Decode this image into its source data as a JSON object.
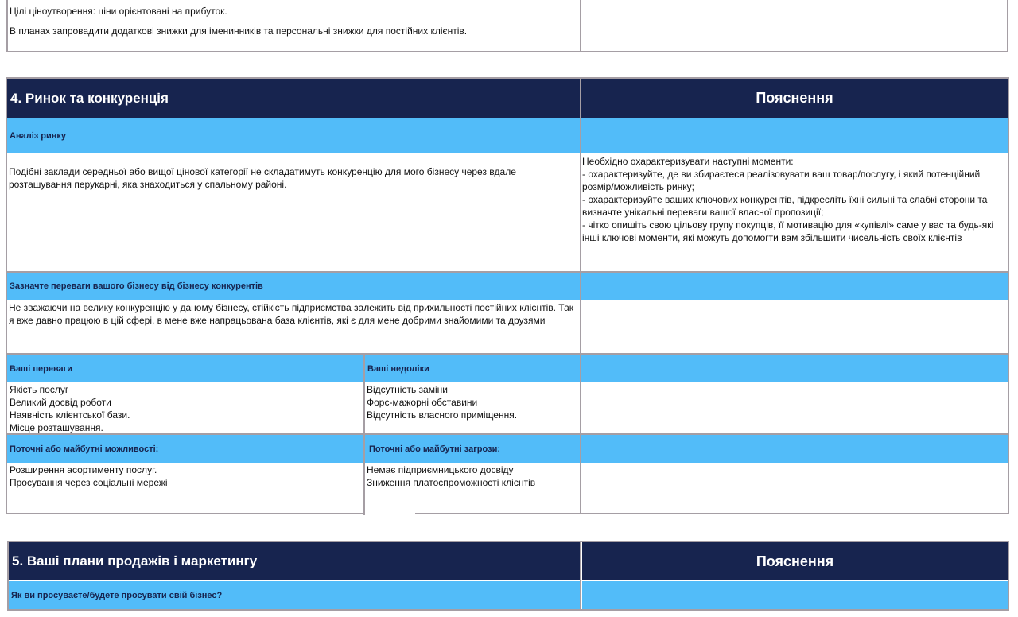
{
  "top": {
    "lines": [
      "Цілі ціноутворення: ціни орієнтовані на прибуток.",
      "В планах запровадити додаткові знижки для іменинників та персональні знижки для постійних клієнтів."
    ]
  },
  "s4": {
    "title": "4. Ринок та конкуренція",
    "explain": "Пояснення",
    "market_label": "Аналіз ринку",
    "market_text": "Подібні заклади середньої або вищої цінової категорії не складатимуть конкуренцію для мого бізнесу через вдале розташування перукарні, яка знаходиться у спальному районі.",
    "hint": [
      "Необхідно охарактеризувати наступні моменти:",
      "- охарактеризуйте, де ви збираєтеся реалізовувати ваш товар/послугу, і який потенційний розмір/можливість ринку;",
      "- охарактеризуйте  ваших ключових конкурентів, підкресліть їхні сильні та слабкі сторони та визначте унікальні переваги вашої власної пропозиції;",
      "- чітко опишіть свою цільову групу покупців, її мотивацію для «купівлі» саме у вас та будь-які інші ключові моменти, які можуть допомогти вам збільшити чисельність своїх клієнтів"
    ],
    "adv_label": "Зазначте переваги вашого бізнесу від бізнесу конкурентів",
    "adv_text": "Не зважаючи на велику конкуренцію у даному бізнесу, стійкість підприємства залежить від прихильності постійних клієнтів. Так я вже давно працюю в цій сфері, в мене вже напрацьована база клієнтів, які є для мене добрими знайомими та друзями",
    "strengths_label": "Ваші переваги",
    "strengths": [
      "Якість послуг",
      "Великий досвід роботи",
      "Наявність клієнтської бази.",
      "Місце розташування."
    ],
    "weaknesses_label": "Ваші недоліки",
    "weaknesses": [
      "Відсутність заміни",
      "Форс-мажорні обставини",
      "Відсутність власного приміщення."
    ],
    "opps_label": "Поточні або майбутні можливості:",
    "opps": [
      "Розширення асортименту послуг.",
      "Просування через соціальні мережі"
    ],
    "threats_label": "Поточні або майбутні загрози:",
    "threats": [
      "Немає підприємницького досвіду",
      "Зниження платоспроможності клієнтів"
    ]
  },
  "s5": {
    "title": "5. Ваші плани продажів і маркетингу",
    "explain": "Пояснення",
    "q1": "Як ви просуваєте/будете просувати свій бізнес?"
  }
}
